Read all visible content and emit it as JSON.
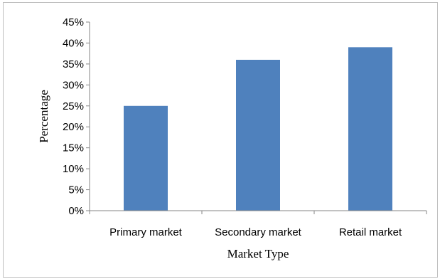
{
  "chart_data": {
    "type": "bar",
    "categories": [
      "Primary market",
      "Secondary market",
      "Retail market"
    ],
    "values": [
      25,
      36,
      39
    ],
    "value_unit": "%",
    "xlabel": "Market Type",
    "ylabel": "Percentage",
    "ylim": [
      0,
      45
    ],
    "ytick_step": 5,
    "ytick_labels": [
      "0%",
      "5%",
      "10%",
      "15%",
      "20%",
      "25%",
      "30%",
      "35%",
      "40%",
      "45%"
    ],
    "grid": false,
    "legend": "none",
    "bar_color": "#4f81bd"
  }
}
